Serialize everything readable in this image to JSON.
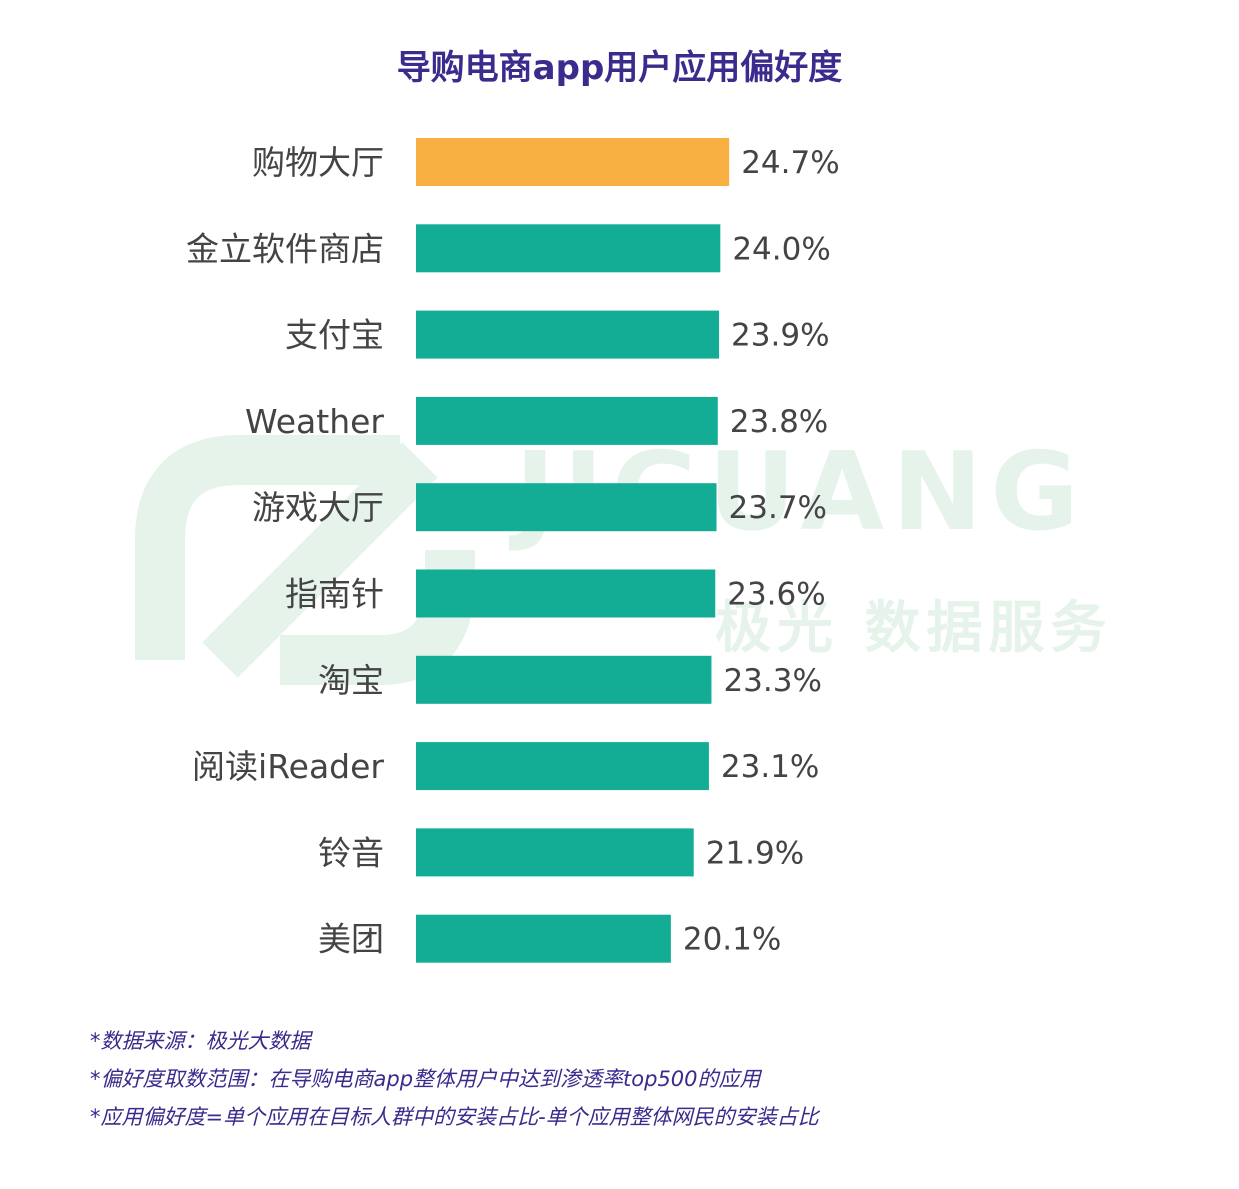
{
  "chart_data": {
    "type": "bar",
    "orientation": "horizontal",
    "title": "导购电商app用户应用偏好度",
    "categories": [
      "购物大厅",
      "金立软件商店",
      "支付宝",
      "Weather",
      "游戏大厅",
      "指南针",
      "淘宝",
      "阅读iReader",
      "铃音",
      "美团"
    ],
    "values": [
      24.7,
      24.0,
      23.9,
      23.8,
      23.7,
      23.6,
      23.3,
      23.1,
      21.9,
      20.1
    ],
    "value_labels": [
      "24.7%",
      "24.0%",
      "23.9%",
      "23.8%",
      "23.7%",
      "23.6%",
      "23.3%",
      "23.1%",
      "21.9%",
      "20.1%"
    ],
    "unit": "%",
    "bar_colors": [
      "#f7b041",
      "#12ad94",
      "#12ad94",
      "#12ad94",
      "#12ad94",
      "#12ad94",
      "#12ad94",
      "#12ad94",
      "#12ad94",
      "#12ad94"
    ],
    "grid": false,
    "legend": "none"
  },
  "watermark": {
    "brand": "JIGUANG",
    "tagline": "极光 数据服务"
  },
  "notes": [
    "*数据来源：极光大数据",
    "*偏好度取数范围：在导购电商app整体用户中达到渗透率top500的应用",
    "*应用偏好度=单个应用在目标人群中的安装占比-单个应用整体网民的安装占比"
  ]
}
